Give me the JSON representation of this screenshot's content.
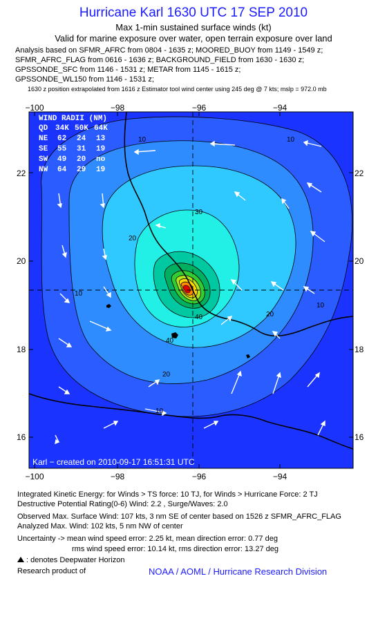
{
  "header": {
    "title": "Hurricane Karl 1630 UTC 17 SEP 2010",
    "subtitle1": "Max 1-min sustained surface winds (kt)",
    "subtitle2": "Valid for marine exposure over water, open terrain exposure over land"
  },
  "analysis_lines": [
    "Analysis based on SFMR_AFRC from 0804 - 1635 z; MOORED_BUOY from 1149 - 1549 z;",
    "SFMR_AFRC_FLAG from 0616 - 1636 z; BACKGROUND_FIELD from 1630 - 1630 z;",
    "GPSSONDE_SFC from 1146 - 1531 z; METAR from 1145 - 1615 z;",
    "GPSSONDE_WL150 from 1146 - 1531 z;"
  ],
  "position_note": "1630 z position extrapolated from 1616 z Estimator tool wind center using 245 deg @ 7 kts; mslp = 972.0 mb",
  "map": {
    "lon_ticks": [
      "−100",
      "−98",
      "−96",
      "−94"
    ],
    "lat_ticks": [
      "22",
      "20",
      "18",
      "16"
    ],
    "credit": "Karl − created on 2010-09-17 16:51:31 UTC",
    "contour_labels": [
      "10",
      "10",
      "10",
      "10",
      "10",
      "20",
      "20",
      "20",
      "30",
      "40",
      "40"
    ],
    "wind_radii": {
      "title": "WIND RADII (NM)",
      "header": [
        "QD",
        "34K",
        "50K",
        "64K"
      ],
      "rows": [
        [
          "NE",
          "62",
          "24",
          "13"
        ],
        [
          "SE",
          "55",
          "31",
          "19"
        ],
        [
          "SW",
          "49",
          "20",
          "no"
        ],
        [
          "NW",
          "64",
          "29",
          "19"
        ]
      ]
    },
    "colors": {
      "outer": "#1a33ff",
      "c10": "#2a5cff",
      "c20": "#2f8cff",
      "c30": "#2fc8ff",
      "c40": "#22f0e6",
      "c50": "#00c8a0",
      "c60": "#00b060",
      "c70": "#33cc33",
      "c80": "#b4e41e",
      "c90": "#ffd700",
      "c100": "#ff8c00",
      "center": "#e00000"
    }
  },
  "footer": {
    "ike": "Integrated Kinetic Energy:  for Winds > TS force: 10 TJ,  for Winds > Hurricane Force: 2 TJ",
    "dpr": "Destructive Potential Rating(0-6)   Wind: 2.2 , Surge/Waves: 2.0",
    "observed": "Observed Max. Surface Wind: 107 kts, 3 nm SE of center based on 1526 z SFMR_AFRC_FLAG",
    "analyzed": "Analyzed Max. Wind: 102 kts, 5 nm NW of center",
    "uncertainty1": "Uncertainty -> mean wind speed error: 2.25 kt,   mean direction error: 0.77 deg",
    "uncertainty2": "rms wind speed error: 10.14 kt,   rms direction error: 13.27 deg",
    "deepwater": ": denotes Deepwater Horizon",
    "research": "Research product of",
    "org": "NOAA / AOML / Hurricane Research Division"
  }
}
